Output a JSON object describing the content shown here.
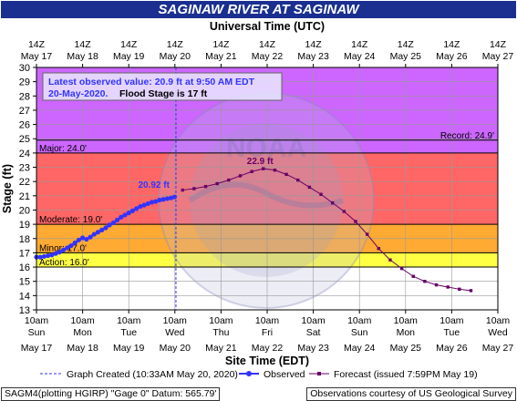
{
  "chart_data": {
    "type": "line",
    "title": "SAGINAW RIVER AT SAGINAW",
    "top_axis_label": "Universal Time (UTC)",
    "xlabel": "Site Time (EDT)",
    "ylabel": "Stage (ft)",
    "ylim": [
      13,
      30
    ],
    "y_ticks": [
      13,
      14,
      15,
      16,
      17,
      18,
      19,
      20,
      21,
      22,
      23,
      24,
      25,
      26,
      27,
      28,
      29,
      30
    ],
    "x_range_days": [
      "2020-05-17 10:00",
      "2020-05-27 10:00"
    ],
    "top_ticks": [
      {
        "time": "14Z",
        "date": "May 17"
      },
      {
        "time": "14Z",
        "date": "May 18"
      },
      {
        "time": "14Z",
        "date": "May 19"
      },
      {
        "time": "14Z",
        "date": "May 20"
      },
      {
        "time": "14Z",
        "date": "May 21"
      },
      {
        "time": "14Z",
        "date": "May 22"
      },
      {
        "time": "14Z",
        "date": "May 23"
      },
      {
        "time": "14Z",
        "date": "May 24"
      },
      {
        "time": "14Z",
        "date": "May 25"
      },
      {
        "time": "14Z",
        "date": "May 26"
      },
      {
        "time": "14Z",
        "date": "May 27"
      }
    ],
    "bottom_ticks": [
      {
        "time": "10am",
        "day": "Sun",
        "date": "May 17"
      },
      {
        "time": "10am",
        "day": "Mon",
        "date": "May 18"
      },
      {
        "time": "10am",
        "day": "Tue",
        "date": "May 19"
      },
      {
        "time": "10am",
        "day": "Wed",
        "date": "May 20"
      },
      {
        "time": "10am",
        "day": "Thu",
        "date": "May 21"
      },
      {
        "time": "10am",
        "day": "Fri",
        "date": "May 22"
      },
      {
        "time": "10am",
        "day": "Sat",
        "date": "May 23"
      },
      {
        "time": "10am",
        "day": "Sun",
        "date": "May 24"
      },
      {
        "time": "10am",
        "day": "Mon",
        "date": "May 25"
      },
      {
        "time": "10am",
        "day": "Tue",
        "date": "May 26"
      },
      {
        "time": "10am",
        "day": "Wed",
        "date": "May 27"
      }
    ],
    "flood_categories": [
      {
        "name": "Record",
        "label": "Record: 24.9'",
        "value": 24.9
      },
      {
        "name": "Major",
        "label": "Major: 24.0'",
        "value": 24.0,
        "color": "#cc66ff"
      },
      {
        "name": "Moderate",
        "label": "Moderate: 19.0'",
        "value": 19.0,
        "color": "#ff6666"
      },
      {
        "name": "Minor",
        "label": "Minor: 17.0'",
        "value": 17.0,
        "color": "#ffaa33"
      },
      {
        "name": "Action",
        "label": "Action: 16.0'",
        "value": 16.0,
        "color": "#ffff44"
      }
    ],
    "graph_created_x": "2020-05-20 10:33",
    "series": [
      {
        "name": "Observed",
        "color": "#3333ff",
        "x": [
          "2020-05-17 10:00",
          "2020-05-17 12:00",
          "2020-05-17 14:00",
          "2020-05-17 16:00",
          "2020-05-17 18:00",
          "2020-05-17 20:00",
          "2020-05-17 22:00",
          "2020-05-18 00:00",
          "2020-05-18 02:00",
          "2020-05-18 04:00",
          "2020-05-18 06:00",
          "2020-05-18 08:00",
          "2020-05-18 10:00",
          "2020-05-18 12:00",
          "2020-05-18 14:00",
          "2020-05-18 16:00",
          "2020-05-18 18:00",
          "2020-05-18 20:00",
          "2020-05-18 22:00",
          "2020-05-19 00:00",
          "2020-05-19 02:00",
          "2020-05-19 04:00",
          "2020-05-19 06:00",
          "2020-05-19 08:00",
          "2020-05-19 10:00",
          "2020-05-19 12:00",
          "2020-05-19 14:00",
          "2020-05-19 16:00",
          "2020-05-19 18:00",
          "2020-05-19 20:00",
          "2020-05-19 22:00",
          "2020-05-20 00:00",
          "2020-05-20 02:00",
          "2020-05-20 04:00",
          "2020-05-20 06:00",
          "2020-05-20 08:00",
          "2020-05-20 09:50"
        ],
        "values": [
          16.7,
          16.7,
          16.75,
          16.8,
          16.85,
          16.95,
          17.05,
          17.2,
          17.35,
          17.5,
          17.7,
          17.9,
          18.05,
          17.95,
          18.1,
          18.3,
          18.45,
          18.6,
          18.75,
          18.95,
          19.1,
          19.3,
          19.5,
          19.65,
          19.8,
          19.95,
          20.1,
          20.25,
          20.35,
          20.45,
          20.55,
          20.6,
          20.7,
          20.75,
          20.8,
          20.85,
          20.92
        ]
      },
      {
        "name": "Forecast (issued 7:59PM May 19)",
        "color": "#660066",
        "x": [
          "2020-05-20 14:00",
          "2020-05-20 20:00",
          "2020-05-21 02:00",
          "2020-05-21 08:00",
          "2020-05-21 14:00",
          "2020-05-21 20:00",
          "2020-05-22 02:00",
          "2020-05-22 08:00",
          "2020-05-22 14:00",
          "2020-05-22 20:00",
          "2020-05-23 02:00",
          "2020-05-23 08:00",
          "2020-05-23 14:00",
          "2020-05-23 20:00",
          "2020-05-24 02:00",
          "2020-05-24 08:00",
          "2020-05-24 14:00",
          "2020-05-24 20:00",
          "2020-05-25 02:00",
          "2020-05-25 08:00",
          "2020-05-25 14:00",
          "2020-05-25 20:00",
          "2020-05-26 02:00",
          "2020-05-26 08:00",
          "2020-05-26 14:00",
          "2020-05-26 20:00"
        ],
        "values": [
          21.4,
          21.5,
          21.65,
          21.85,
          22.1,
          22.4,
          22.7,
          22.9,
          22.8,
          22.5,
          22.1,
          21.6,
          21.1,
          20.5,
          19.9,
          19.2,
          18.3,
          17.3,
          16.5,
          15.9,
          15.35,
          15.0,
          14.75,
          14.6,
          14.45,
          14.35
        ]
      }
    ],
    "annotations": [
      {
        "text": "20.92 ft",
        "x": "2020-05-20 09:50",
        "y": 20.92,
        "color": "#3333ff"
      },
      {
        "text": "22.9 ft",
        "x": "2020-05-22 08:00",
        "y": 22.9,
        "color": "#660066"
      }
    ],
    "info_box": {
      "line1": "Latest observed value: 20.9 ft at 9:50 AM EDT",
      "line2a": "20-May-2020.",
      "line2b": "Flood Stage is 17 ft"
    },
    "legend": {
      "created": "Graph Created (10:33AM May 20, 2020)",
      "observed": "Observed",
      "forecast": "Forecast (issued 7:59PM May 19)"
    },
    "watermark_text": "NOAA"
  },
  "footer": {
    "left": "SAGM4(plotting HGIRP) \"Gage 0\" Datum: 565.79'",
    "right": "Observations courtesy of US Geological Survey"
  }
}
